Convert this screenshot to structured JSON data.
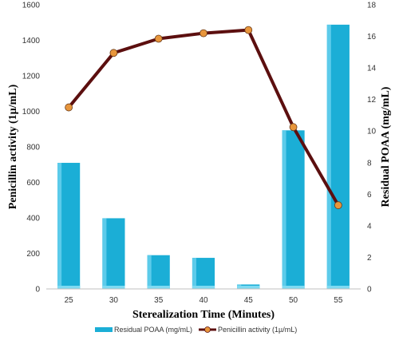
{
  "chart_data": {
    "type": "bar+line",
    "categories": [
      "25",
      "30",
      "35",
      "40",
      "45",
      "50",
      "55"
    ],
    "xlabel": "Sterealization Time (Minutes)",
    "ylabel_left": "Penicillin activity (1µ/mL)",
    "ylabel_right": "Residual POAA (mg/mL)",
    "ylim_left": [
      0,
      1600
    ],
    "yticks_left": [
      0,
      200,
      400,
      600,
      800,
      1000,
      1200,
      1400,
      1600
    ],
    "ylim_right": [
      0,
      18
    ],
    "yticks_right": [
      0,
      2,
      4,
      6,
      8,
      10,
      12,
      14,
      16,
      18
    ],
    "grid": false,
    "legend_position": "bottom",
    "series": [
      {
        "name": "Residual POAA (mg/mL)",
        "type": "bar",
        "axis": "left",
        "color": "#1BAED6",
        "values": [
          710,
          398,
          190,
          175,
          25,
          893,
          1488
        ]
      },
      {
        "name": "Penicillin activity (1µ/mL)",
        "type": "line",
        "axis": "right",
        "color": "#5C0F0F",
        "marker_color": "#E8963C",
        "values": [
          11.5,
          14.95,
          15.85,
          16.2,
          16.4,
          10.25,
          5.3
        ]
      }
    ]
  }
}
